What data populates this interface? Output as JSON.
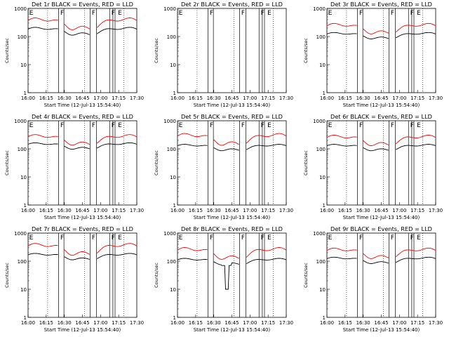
{
  "chart_data": [
    {
      "type": "line",
      "title": "Det 1r BLACK = Events, RED = LLD",
      "xlabel": "Start Time (12-Jul-13 15:54:40)",
      "ylabel": "Counts/sec",
      "y_scale": "log",
      "ylim": [
        1,
        1000
      ],
      "y_ticks": [
        "1",
        "10",
        "100",
        "1000"
      ],
      "x_ticks": [
        "16:00",
        "16:15",
        "16:30",
        "16:45",
        "17:00",
        "17:15",
        "17:30"
      ],
      "flag_lines": [
        "E",
        "F",
        "F",
        "F",
        "E"
      ],
      "legend_text": "BLACK = Events, RED = LLD",
      "series": [
        {
          "color": "#000000",
          "shape": "normal",
          "base": 160,
          "bump": 1.25
        },
        {
          "color": "#ff0000",
          "shape": "normal",
          "base": 300,
          "bump": 1.4
        }
      ]
    },
    {
      "type": "line",
      "title": "Det 2r BLACK = Events, RED = LLD",
      "xlabel": "Start Time (12-Jul-13 15:54:40)",
      "ylabel": "Counts/sec",
      "y_scale": "log",
      "ylim": [
        1,
        1000
      ],
      "y_ticks": [
        "1",
        "10",
        "100",
        "1000"
      ],
      "x_ticks": [
        "16:00",
        "16:15",
        "16:30",
        "16:45",
        "17:00",
        "17:15",
        "17:30"
      ],
      "flag_lines": [
        "E",
        "F",
        "F",
        "F",
        "E"
      ],
      "legend_text": "BLACK = Events, RED = LLD",
      "series": []
    },
    {
      "type": "line",
      "title": "Det 3r BLACK = Events, RED = LLD",
      "xlabel": "Start Time (12-Jul-13 15:54:40)",
      "ylabel": "Counts/sec",
      "y_scale": "log",
      "ylim": [
        1,
        1000
      ],
      "y_ticks": [
        "1",
        "10",
        "100",
        "1000"
      ],
      "x_ticks": [
        "16:00",
        "16:15",
        "16:30",
        "16:45",
        "17:00",
        "17:15",
        "17:30"
      ],
      "flag_lines": [
        "E",
        "F",
        "F",
        "F",
        "E"
      ],
      "legend_text": "BLACK = Events, RED = LLD",
      "series": [
        {
          "color": "#000000",
          "shape": "normal",
          "base": 110,
          "bump": 1.2
        },
        {
          "color": "#ff0000",
          "shape": "normal",
          "base": 200,
          "bump": 1.35
        }
      ]
    },
    {
      "type": "line",
      "title": "Det 4r BLACK = Events, RED = LLD",
      "xlabel": "Start Time (12-Jul-13 15:54:40)",
      "ylabel": "Counts/sec",
      "y_scale": "log",
      "ylim": [
        1,
        1000
      ],
      "y_ticks": [
        "1",
        "10",
        "100",
        "1000"
      ],
      "x_ticks": [
        "16:00",
        "16:15",
        "16:30",
        "16:45",
        "17:00",
        "17:15",
        "17:30"
      ],
      "flag_lines": [
        "E",
        "F",
        "F",
        "F",
        "E"
      ],
      "legend_text": "BLACK = Events, RED = LLD",
      "series": [
        {
          "color": "#000000",
          "shape": "normal",
          "base": 130,
          "bump": 1.2
        },
        {
          "color": "#ff0000",
          "shape": "normal",
          "base": 220,
          "bump": 1.35
        }
      ]
    },
    {
      "type": "line",
      "title": "Det 5r BLACK = Events, RED = LLD",
      "xlabel": "Start Time (12-Jul-13 15:54:40)",
      "ylabel": "Counts/sec",
      "y_scale": "log",
      "ylim": [
        1,
        1000
      ],
      "y_ticks": [
        "1",
        "10",
        "100",
        "1000"
      ],
      "x_ticks": [
        "16:00",
        "16:15",
        "16:30",
        "16:45",
        "17:00",
        "17:15",
        "17:30"
      ],
      "flag_lines": [
        "E",
        "F",
        "F",
        "F",
        "E"
      ],
      "legend_text": "BLACK = Events, RED = LLD",
      "series": [
        {
          "color": "#000000",
          "shape": "normal",
          "base": 115,
          "bump": 1.2
        },
        {
          "color": "#ff0000",
          "shape": "normal",
          "base": 230,
          "bump": 1.4
        }
      ]
    },
    {
      "type": "line",
      "title": "Det 6r BLACK = Events, RED = LLD",
      "xlabel": "Start Time (12-Jul-13 15:54:40)",
      "ylabel": "Counts/sec",
      "y_scale": "log",
      "ylim": [
        1,
        1000
      ],
      "y_ticks": [
        "1",
        "10",
        "100",
        "1000"
      ],
      "x_ticks": [
        "16:00",
        "16:15",
        "16:30",
        "16:45",
        "17:00",
        "17:15",
        "17:30"
      ],
      "flag_lines": [
        "E",
        "F",
        "F",
        "F",
        "E"
      ],
      "legend_text": "BLACK = Events, RED = LLD",
      "series": [
        {
          "color": "#000000",
          "shape": "normal",
          "base": 115,
          "bump": 1.2
        },
        {
          "color": "#ff0000",
          "shape": "normal",
          "base": 210,
          "bump": 1.35
        }
      ]
    },
    {
      "type": "line",
      "title": "Det 7r BLACK = Events, RED = LLD",
      "xlabel": "Start Time (12-Jul-13 15:54:40)",
      "ylabel": "Counts/sec",
      "y_scale": "log",
      "ylim": [
        1,
        1000
      ],
      "y_ticks": [
        "1",
        "10",
        "100",
        "1000"
      ],
      "x_ticks": [
        "16:00",
        "16:15",
        "16:30",
        "16:45",
        "17:00",
        "17:15",
        "17:30"
      ],
      "flag_lines": [
        "E",
        "F",
        "F",
        "F",
        "E"
      ],
      "legend_text": "BLACK = Events, RED = LLD",
      "series": [
        {
          "color": "#000000",
          "shape": "normal",
          "base": 150,
          "bump": 1.2
        },
        {
          "color": "#ff0000",
          "shape": "normal",
          "base": 280,
          "bump": 1.4
        }
      ]
    },
    {
      "type": "line",
      "title": "Det 8r BLACK = Events, RED = LLD",
      "xlabel": "Start Time (12-Jul-13 15:54:40)",
      "ylabel": "Counts/sec",
      "y_scale": "log",
      "ylim": [
        1,
        1000
      ],
      "y_ticks": [
        "1",
        "10",
        "100",
        "1000"
      ],
      "x_ticks": [
        "16:00",
        "16:15",
        "16:30",
        "16:45",
        "17:00",
        "17:15",
        "17:30"
      ],
      "flag_lines": [
        "E",
        "F",
        "F",
        "F",
        "E"
      ],
      "legend_text": "BLACK = Events, RED = LLD",
      "series": [
        {
          "color": "#000000",
          "shape": "det8",
          "base": 100,
          "bump": 1.2
        },
        {
          "color": "#ff0000",
          "shape": "normal",
          "base": 200,
          "bump": 1.4
        }
      ]
    },
    {
      "type": "line",
      "title": "Det 9r BLACK = Events, RED = LLD",
      "xlabel": "Start Time (12-Jul-13 15:54:40)",
      "ylabel": "Counts/sec",
      "y_scale": "log",
      "ylim": [
        1,
        1000
      ],
      "y_ticks": [
        "1",
        "10",
        "100",
        "1000"
      ],
      "x_ticks": [
        "16:00",
        "16:15",
        "16:30",
        "16:45",
        "17:00",
        "17:15",
        "17:30"
      ],
      "flag_lines": [
        "E",
        "F",
        "F",
        "F",
        "E"
      ],
      "legend_text": "BLACK = Events, RED = LLD",
      "series": [
        {
          "color": "#000000",
          "shape": "normal",
          "base": 110,
          "bump": 1.2
        },
        {
          "color": "#ff0000",
          "shape": "normal",
          "base": 200,
          "bump": 1.35
        }
      ]
    }
  ]
}
